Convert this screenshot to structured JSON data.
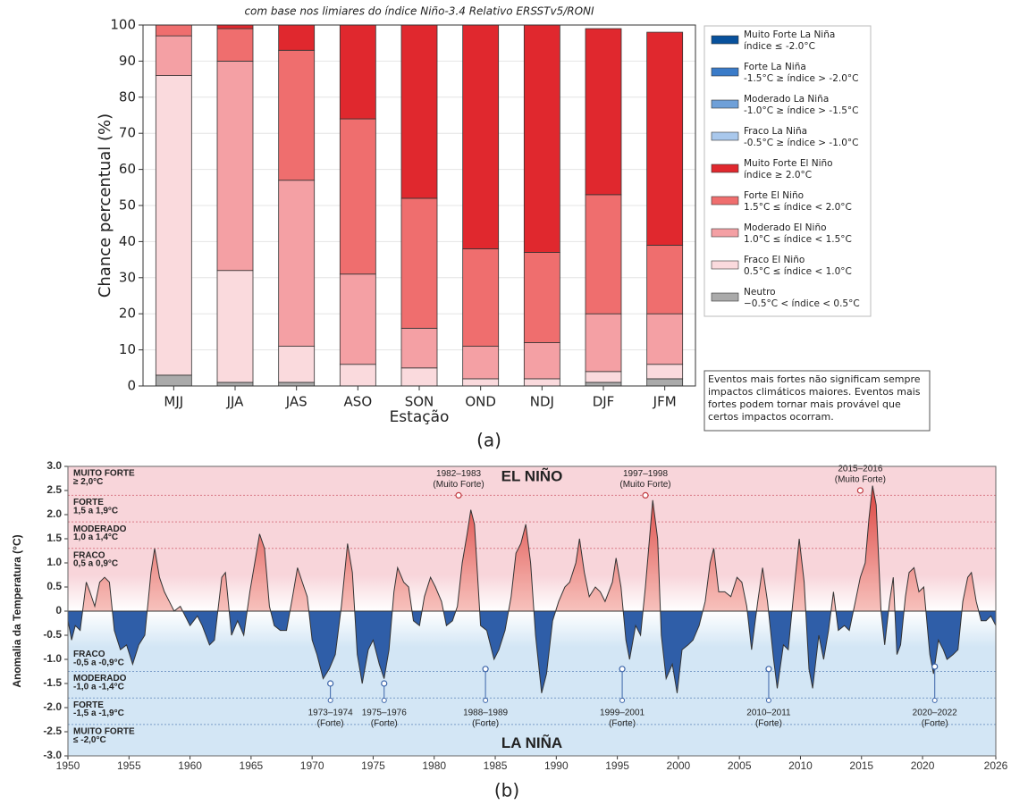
{
  "chart_data": [
    {
      "type": "stacked_bar",
      "title": "com base nos limiares do índice Niño-3.4 Relativo ERSSTv5/RONI",
      "ylabel": "Chance percentual (%)",
      "xlabel": "Estação",
      "caption": "(a)",
      "categories": [
        "MJJ",
        "JJA",
        "JAS",
        "ASO",
        "SON",
        "OND",
        "NDJ",
        "DJF",
        "JFM"
      ],
      "series": [
        {
          "name": "Muito Forte La Niña",
          "range": "índice ≤ -2.0°C",
          "color": "#08519c",
          "values": [
            0,
            0,
            0,
            0,
            0,
            0,
            0,
            0,
            0
          ]
        },
        {
          "name": "Forte La Niña",
          "range": "-1.5°C ≥ índice > -2.0°C",
          "color": "#3a7bc8",
          "values": [
            0,
            0,
            0,
            0,
            0,
            0,
            0,
            0,
            0
          ]
        },
        {
          "name": "Moderado La Niña",
          "range": "-1.0°C ≥ índice > -1.5°C",
          "color": "#6fa0d8",
          "values": [
            0,
            0,
            0,
            0,
            0,
            0,
            0,
            0,
            0
          ]
        },
        {
          "name": "Fraco La Niña",
          "range": "-0.5°C ≥ índice > -1.0°C",
          "color": "#a9c8ec",
          "values": [
            0,
            0,
            0,
            0,
            0,
            0,
            0,
            0,
            0
          ]
        },
        {
          "name": "Muito Forte El Niño",
          "range": "índice ≥ 2.0°C",
          "color": "#e0282e",
          "values": [
            0,
            1,
            7,
            26,
            48,
            62,
            63,
            46,
            59
          ]
        },
        {
          "name": "Forte El Niño",
          "range": "1.5°C ≤ índice < 2.0°C",
          "color": "#ef6e6e",
          "values": [
            3,
            9,
            36,
            43,
            36,
            27,
            25,
            33,
            19
          ]
        },
        {
          "name": "Moderado El Niño",
          "range": "1.0°C ≤ índice < 1.5°C",
          "color": "#f4a0a4",
          "values": [
            11,
            58,
            46,
            25,
            11,
            9,
            10,
            16,
            14
          ]
        },
        {
          "name": "Fraco El Niño",
          "range": "0.5°C ≤ índice < 1.0°C",
          "color": "#fadadd",
          "values": [
            83,
            31,
            10,
            6,
            5,
            2,
            2,
            3,
            4
          ]
        },
        {
          "name": "Neutro",
          "range": "−0.5°C < índice < 0.5°C",
          "color": "#aaaaaa",
          "values": [
            3,
            1,
            1,
            0,
            0,
            0,
            0,
            1,
            2
          ]
        }
      ],
      "ylim": [
        0,
        100
      ],
      "yticks": [
        0,
        10,
        20,
        30,
        40,
        50,
        60,
        70,
        80,
        90,
        100
      ],
      "grid": true,
      "note": [
        "Eventos mais fortes não significam sempre",
        "impactos climáticos maiores. Eventos mais",
        "fortes podem tornar mais provável que",
        "certos impactos ocorram."
      ]
    },
    {
      "type": "area",
      "ylabel": "Anomalia da Temperatura (°C)",
      "caption": "(b)",
      "el_nino_label": "EL NIÑO",
      "la_nina_label": "LA NIÑA",
      "xlim": [
        1950,
        2026
      ],
      "xticks": [
        1950,
        1955,
        1960,
        1965,
        1970,
        1975,
        1980,
        1985,
        1990,
        1995,
        2000,
        2005,
        2010,
        2015,
        2020,
        2026
      ],
      "ylim": [
        -3,
        3
      ],
      "yticks": [
        {
          "value": 3,
          "label": "3.0"
        },
        2.5,
        {
          "value": 2,
          "label": "2.0"
        },
        1.5,
        {
          "value": 1,
          "label": "1.0"
        },
        0.5,
        0,
        -0.5,
        {
          "value": -1,
          "label": "-1.0"
        },
        -1.5,
        {
          "value": -2,
          "label": "-2.0"
        },
        -2.5,
        {
          "value": -3,
          "label": "-3.0"
        }
      ],
      "el_nino_bands": [
        {
          "label": "MUITO FORTE",
          "range": "≥ 2,0°C",
          "top": 3,
          "line": 2.4
        },
        {
          "label": "FORTE",
          "range": "1,5 a 1,9°C",
          "top": 2.4,
          "line": 1.85
        },
        {
          "label": "MODERADO",
          "range": "1,0 a 1,4°C",
          "top": 1.85,
          "line": 1.3
        },
        {
          "label": "FRACO",
          "range": "0,5 a 0,9°C",
          "top": 1.3,
          "line": 0.75
        }
      ],
      "la_nina_bands": [
        {
          "label": "FRACO",
          "range": "-0,5 a -0,9°C",
          "line": -0.75
        },
        {
          "label": "MODERADO",
          "range": "-1,0 a -1,4°C",
          "line": -1.25
        },
        {
          "label": "FORTE",
          "range": "-1,5 a -1,9°C",
          "line": -1.8
        },
        {
          "label": "MUITO FORTE",
          "range": "≤ -2,0°C",
          "line": -2.35
        }
      ],
      "el_nino_events": [
        {
          "label": "1982–1983",
          "strength": "(Muito Forte)",
          "x": 1982,
          "y": 2.4
        },
        {
          "label": "1997–1998",
          "strength": "(Muito Forte)",
          "x": 1997.3,
          "y": 2.4
        },
        {
          "label": "2015–2016",
          "strength": "(Muito Forte)",
          "x": 2014.9,
          "y": 2.5
        }
      ],
      "la_nina_events": [
        {
          "label": "1973–1974",
          "strength": "(Forte)",
          "x": 1971.5,
          "y": -1.5
        },
        {
          "label": "1975–1976",
          "strength": "(Forte)",
          "x": 1975.9,
          "y": -1.5
        },
        {
          "label": "1988–1989",
          "strength": "(Forte)",
          "x": 1984.2,
          "y": -1.2
        },
        {
          "label": "1999–2001",
          "strength": "(Forte)",
          "x": 1995.4,
          "y": -1.2
        },
        {
          "label": "2010–2011",
          "strength": "(Forte)",
          "x": 2007.4,
          "y": -1.2
        },
        {
          "label": "2020–2022",
          "strength": "(Forte)",
          "x": 2021,
          "y": -1.15
        }
      ],
      "x": [
        1950.0,
        1950.3,
        1950.6,
        1951.0,
        1951.5,
        1951.8,
        1952.2,
        1952.6,
        1953.0,
        1953.4,
        1953.8,
        1954.3,
        1954.8,
        1955.3,
        1955.8,
        1956.3,
        1956.8,
        1957.1,
        1957.5,
        1957.9,
        1958.3,
        1958.7,
        1959.2,
        1959.6,
        1960.0,
        1960.6,
        1961.0,
        1961.6,
        1962.0,
        1962.6,
        1962.9,
        1963.4,
        1963.9,
        1964.4,
        1964.9,
        1965.3,
        1965.7,
        1966.1,
        1966.5,
        1966.9,
        1967.4,
        1967.9,
        1968.4,
        1968.8,
        1969.2,
        1969.6,
        1970.0,
        1970.4,
        1970.9,
        1971.4,
        1971.9,
        1972.4,
        1972.9,
        1973.3,
        1973.7,
        1974.1,
        1974.6,
        1975.0,
        1975.5,
        1975.9,
        1976.3,
        1976.7,
        1977.0,
        1977.5,
        1977.9,
        1978.3,
        1978.8,
        1979.2,
        1979.7,
        1980.1,
        1980.6,
        1981.0,
        1981.5,
        1981.9,
        1982.3,
        1982.7,
        1983.0,
        1983.3,
        1983.8,
        1984.3,
        1984.9,
        1985.3,
        1985.8,
        1986.3,
        1986.7,
        1987.1,
        1987.5,
        1987.9,
        1988.3,
        1988.8,
        1989.2,
        1989.7,
        1990.2,
        1990.7,
        1991.1,
        1991.6,
        1991.9,
        1992.3,
        1992.7,
        1993.2,
        1993.6,
        1994.0,
        1994.6,
        1994.9,
        1995.3,
        1995.7,
        1996.0,
        1996.5,
        1996.9,
        1997.3,
        1997.7,
        1997.9,
        1998.3,
        1998.6,
        1999.0,
        1999.5,
        1999.9,
        2000.3,
        2000.8,
        2001.2,
        2001.7,
        2002.2,
        2002.6,
        2002.9,
        2003.3,
        2003.8,
        2004.3,
        2004.8,
        2005.2,
        2005.6,
        2006.0,
        2006.5,
        2006.9,
        2007.3,
        2007.8,
        2008.1,
        2008.6,
        2009.0,
        2009.5,
        2009.9,
        2010.3,
        2010.7,
        2011.0,
        2011.5,
        2011.9,
        2012.3,
        2012.7,
        2013.1,
        2013.6,
        2014.0,
        2014.5,
        2014.9,
        2015.3,
        2015.6,
        2015.9,
        2016.2,
        2016.6,
        2016.9,
        2017.3,
        2017.6,
        2017.9,
        2018.2,
        2018.6,
        2018.9,
        2019.3,
        2019.7,
        2020.1,
        2020.6,
        2020.9,
        2021.3,
        2021.7,
        2022.0,
        2022.5,
        2022.9,
        2023.3,
        2023.7,
        2024.0,
        2024.4,
        2024.8,
        2025.2,
        2025.6,
        2026.0
      ],
      "values": [
        -0.2,
        -0.6,
        -0.3,
        -0.4,
        0.6,
        0.4,
        0.1,
        0.6,
        0.7,
        0.6,
        -0.4,
        -0.8,
        -0.7,
        -1.1,
        -0.7,
        -0.5,
        0.8,
        1.3,
        0.7,
        0.4,
        0.2,
        0.0,
        0.1,
        -0.1,
        -0.3,
        -0.1,
        -0.3,
        -0.7,
        -0.6,
        0.7,
        0.8,
        -0.5,
        -0.2,
        -0.5,
        0.4,
        1.0,
        1.6,
        1.3,
        0.1,
        -0.3,
        -0.4,
        -0.4,
        0.3,
        0.9,
        0.6,
        0.3,
        -0.6,
        -0.9,
        -1.4,
        -1.2,
        -0.9,
        0.1,
        1.4,
        0.8,
        -0.9,
        -1.5,
        -0.8,
        -0.6,
        -1.1,
        -1.4,
        -0.8,
        0.4,
        0.9,
        0.6,
        0.5,
        -0.2,
        -0.3,
        0.3,
        0.7,
        0.5,
        0.2,
        -0.3,
        -0.2,
        0.1,
        1.0,
        1.6,
        2.1,
        1.8,
        -0.3,
        -0.4,
        -1.0,
        -0.8,
        -0.4,
        0.3,
        1.2,
        1.4,
        1.8,
        1.0,
        -0.5,
        -1.7,
        -1.3,
        -0.2,
        0.2,
        0.5,
        0.6,
        1.0,
        1.5,
        0.8,
        0.3,
        0.5,
        0.4,
        0.2,
        0.6,
        1.1,
        0.5,
        -0.6,
        -1.0,
        -0.3,
        -0.5,
        0.5,
        1.7,
        2.3,
        1.5,
        -0.5,
        -1.4,
        -1.1,
        -1.7,
        -0.8,
        -0.7,
        -0.6,
        -0.3,
        0.2,
        1.0,
        1.3,
        0.4,
        0.4,
        0.3,
        0.7,
        0.6,
        0.1,
        -0.8,
        0.2,
        0.9,
        0.2,
        -1.0,
        -1.6,
        -0.7,
        -0.8,
        0.5,
        1.5,
        0.6,
        -1.2,
        -1.6,
        -0.5,
        -1.0,
        -0.4,
        0.4,
        -0.4,
        -0.3,
        -0.4,
        0.2,
        0.7,
        1.0,
        1.9,
        2.6,
        2.2,
        0.0,
        -0.7,
        0.2,
        0.7,
        -0.9,
        -0.7,
        0.3,
        0.8,
        0.9,
        0.4,
        0.5,
        -0.9,
        -1.3,
        -0.6,
        -0.8,
        -1.0,
        -0.9,
        -0.8,
        0.2,
        0.7,
        0.8,
        0.2,
        -0.2,
        -0.2,
        -0.1,
        -0.3
      ]
    }
  ]
}
